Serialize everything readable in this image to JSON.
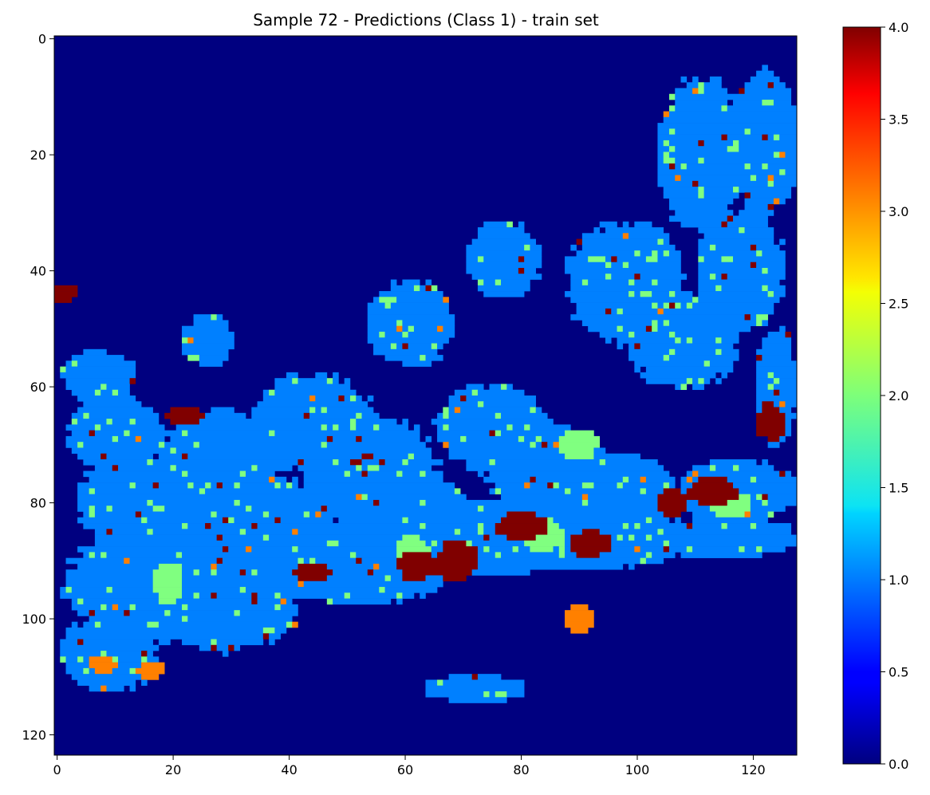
{
  "chart_data": {
    "type": "heatmap",
    "title": "Sample 72 - Predictions (Class 1) - train set",
    "xlabel": "",
    "ylabel": "",
    "grid": false,
    "rows": 124,
    "cols": 128,
    "xlim": [
      0,
      127
    ],
    "ylim": [
      123,
      0
    ],
    "x_ticks": [
      0,
      20,
      40,
      60,
      80,
      100,
      120
    ],
    "y_ticks": [
      0,
      20,
      40,
      60,
      80,
      100,
      120
    ],
    "x_tick_labels": [
      "0",
      "20",
      "40",
      "60",
      "80",
      "100",
      "120"
    ],
    "y_tick_labels": [
      "0",
      "20",
      "40",
      "60",
      "80",
      "100",
      "120"
    ],
    "colormap": "jet",
    "value_range": [
      0.0,
      4.0
    ],
    "colorbar": {
      "ticks": [
        0.0,
        0.5,
        1.0,
        1.5,
        2.0,
        2.5,
        3.0,
        3.5,
        4.0
      ],
      "tick_labels": [
        "0.0",
        "0.5",
        "1.0",
        "1.5",
        "2.0",
        "2.5",
        "3.0",
        "3.5",
        "4.0"
      ]
    },
    "background_value": 0,
    "regions_value_1": [
      {
        "cx": 7,
        "cy": 58,
        "rx": 6,
        "ry": 4
      },
      {
        "cx": 10,
        "cy": 68,
        "rx": 8,
        "ry": 6
      },
      {
        "cx": 14,
        "cy": 80,
        "rx": 10,
        "ry": 8
      },
      {
        "cx": 18,
        "cy": 94,
        "rx": 16,
        "ry": 10
      },
      {
        "cx": 9,
        "cy": 106,
        "rx": 8,
        "ry": 6
      },
      {
        "cx": 28,
        "cy": 74,
        "rx": 10,
        "ry": 10
      },
      {
        "cx": 36,
        "cy": 86,
        "rx": 12,
        "ry": 10
      },
      {
        "cx": 29,
        "cy": 98,
        "rx": 12,
        "ry": 7
      },
      {
        "cx": 26,
        "cy": 52,
        "rx": 4,
        "ry": 4
      },
      {
        "cx": 44,
        "cy": 66,
        "rx": 10,
        "ry": 8
      },
      {
        "cx": 54,
        "cy": 74,
        "rx": 11,
        "ry": 9
      },
      {
        "cx": 50,
        "cy": 90,
        "rx": 20,
        "ry": 7
      },
      {
        "cx": 63,
        "cy": 82,
        "rx": 9,
        "ry": 6
      },
      {
        "cx": 75,
        "cy": 86,
        "rx": 14,
        "ry": 6
      },
      {
        "cx": 91,
        "cy": 86,
        "rx": 18,
        "ry": 5
      },
      {
        "cx": 75,
        "cy": 67,
        "rx": 9,
        "ry": 7
      },
      {
        "cx": 84,
        "cy": 74,
        "rx": 10,
        "ry": 7
      },
      {
        "cx": 97,
        "cy": 78,
        "rx": 9,
        "ry": 6
      },
      {
        "cx": 61,
        "cy": 49,
        "rx": 7,
        "ry": 7
      },
      {
        "cx": 77,
        "cy": 38,
        "rx": 6,
        "ry": 6
      },
      {
        "cx": 98,
        "cy": 42,
        "rx": 10,
        "ry": 10
      },
      {
        "cx": 108,
        "cy": 52,
        "rx": 9,
        "ry": 8
      },
      {
        "cx": 111,
        "cy": 20,
        "rx": 7,
        "ry": 13
      },
      {
        "cx": 118,
        "cy": 40,
        "rx": 7,
        "ry": 10
      },
      {
        "cx": 122,
        "cy": 18,
        "rx": 6,
        "ry": 12
      },
      {
        "cx": 124,
        "cy": 60,
        "rx": 3,
        "ry": 10
      },
      {
        "cx": 117,
        "cy": 78,
        "rx": 10,
        "ry": 5
      },
      {
        "cx": 115,
        "cy": 86,
        "rx": 12,
        "ry": 3
      },
      {
        "cx": 72,
        "cy": 112,
        "rx": 8,
        "ry": 2
      }
    ],
    "regions_value_4": [
      {
        "cx": 1,
        "cy": 44,
        "rx": 2,
        "ry": 1
      },
      {
        "cx": 22,
        "cy": 65,
        "rx": 3,
        "ry": 1
      },
      {
        "cx": 69,
        "cy": 90,
        "rx": 3,
        "ry": 3
      },
      {
        "cx": 62,
        "cy": 91,
        "rx": 3,
        "ry": 2
      },
      {
        "cx": 80,
        "cy": 84,
        "rx": 4,
        "ry": 2
      },
      {
        "cx": 92,
        "cy": 87,
        "rx": 3,
        "ry": 2
      },
      {
        "cx": 113,
        "cy": 78,
        "rx": 4,
        "ry": 2
      },
      {
        "cx": 123,
        "cy": 66,
        "rx": 2,
        "ry": 3
      },
      {
        "cx": 106,
        "cy": 80,
        "rx": 2,
        "ry": 2
      },
      {
        "cx": 44,
        "cy": 92,
        "rx": 3,
        "ry": 1
      }
    ],
    "regions_value_3": [
      {
        "cx": 90,
        "cy": 100,
        "rx": 2,
        "ry": 2
      },
      {
        "cx": 8,
        "cy": 108,
        "rx": 2,
        "ry": 1
      },
      {
        "cx": 16,
        "cy": 109,
        "rx": 2,
        "ry": 1
      }
    ],
    "regions_value_2": [
      {
        "cx": 19,
        "cy": 94,
        "rx": 2,
        "ry": 3
      },
      {
        "cx": 84,
        "cy": 86,
        "rx": 3,
        "ry": 2
      },
      {
        "cx": 90,
        "cy": 70,
        "rx": 3,
        "ry": 2
      },
      {
        "cx": 116,
        "cy": 80,
        "rx": 3,
        "ry": 2
      },
      {
        "cx": 61,
        "cy": 88,
        "rx": 2,
        "ry": 2
      }
    ],
    "seed": 72
  }
}
